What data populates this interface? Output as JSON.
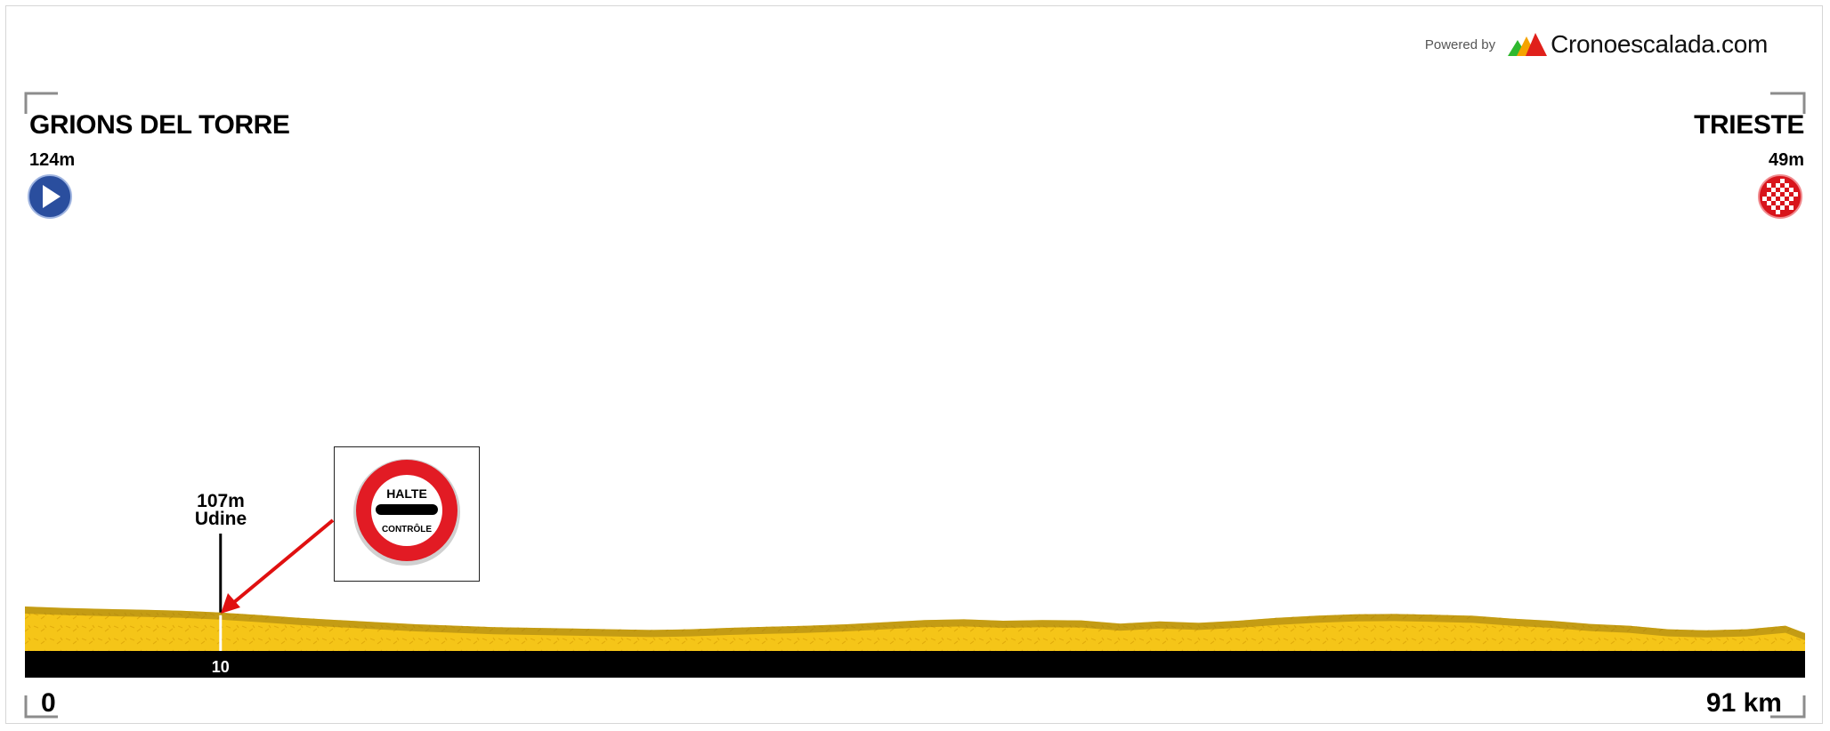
{
  "brand": {
    "powered_by": "Powered by",
    "name": "Cronoescalada.com",
    "logo_colors": [
      "#2eb82e",
      "#f5a300",
      "#e0201b"
    ]
  },
  "start": {
    "town": "GRIONS DEL TORRE",
    "altitude": "124m",
    "icon": "start-play-icon",
    "color": "#2a4e9e"
  },
  "finish": {
    "town": "TRIESTE",
    "altitude": "49m",
    "icon": "finish-checkered-icon",
    "color": "#d8141b"
  },
  "waypoint": {
    "altitude": "107m",
    "name": "Udine",
    "km_label": "10"
  },
  "sign": {
    "text_top": "HALTE",
    "text_bottom": "CONTRÔLE",
    "icon": "halte-controle-sign-icon"
  },
  "axis": {
    "start_label": "0",
    "end_label": "91 km"
  },
  "chart_data": {
    "type": "area",
    "title": "",
    "xlabel": "",
    "ylabel": "",
    "xlim": [
      0,
      91
    ],
    "unit_x": "km",
    "unit_y": "m",
    "x": [
      0,
      2,
      4,
      6,
      8,
      10,
      12,
      14,
      16,
      18,
      20,
      22,
      24,
      26,
      28,
      30,
      32,
      34,
      36,
      38,
      40,
      42,
      44,
      46,
      48,
      50,
      52,
      54,
      56,
      58,
      60,
      62,
      64,
      66,
      68,
      70,
      72,
      74,
      76,
      78,
      80,
      82,
      84,
      86,
      88,
      90,
      91
    ],
    "series": [
      {
        "values": [
          124,
          120,
          117,
          115,
          112,
          107,
          100,
          92,
          86,
          80,
          74,
          70,
          66,
          64,
          62,
          60,
          58,
          60,
          64,
          67,
          70,
          74,
          80,
          86,
          88,
          84,
          86,
          85,
          76,
          82,
          78,
          84,
          92,
          98,
          102,
          103,
          101,
          98,
          90,
          84,
          75,
          70,
          60,
          57,
          60,
          70,
          49
        ]
      }
    ],
    "colors": {
      "fill": "#f5c518",
      "shade": "#9a7a12",
      "baseline": "#000000"
    },
    "markers": [
      {
        "km": 10,
        "label": "Udine",
        "altitude": 107
      }
    ]
  }
}
